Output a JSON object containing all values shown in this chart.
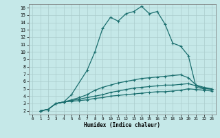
{
  "xlabel": "Humidex (Indice chaleur)",
  "bg_color": "#c5e8e8",
  "grid_color": "#aacccc",
  "line_color": "#1a6e6e",
  "xlim": [
    -0.5,
    23.5
  ],
  "ylim": [
    1.5,
    16.5
  ],
  "xticks": [
    0,
    1,
    2,
    3,
    4,
    5,
    6,
    7,
    8,
    9,
    10,
    11,
    12,
    13,
    14,
    15,
    16,
    17,
    18,
    19,
    20,
    21,
    22,
    23
  ],
  "yticks": [
    2,
    3,
    4,
    5,
    6,
    7,
    8,
    9,
    10,
    11,
    12,
    13,
    14,
    15,
    16
  ],
  "series1": [
    [
      1,
      2.0
    ],
    [
      2,
      2.2
    ],
    [
      3,
      3.0
    ],
    [
      4,
      3.2
    ],
    [
      5,
      4.2
    ],
    [
      7,
      7.5
    ],
    [
      8,
      10.0
    ],
    [
      9,
      13.2
    ],
    [
      10,
      14.7
    ],
    [
      11,
      14.2
    ],
    [
      12,
      15.2
    ],
    [
      13,
      15.5
    ],
    [
      14,
      16.2
    ],
    [
      15,
      15.2
    ],
    [
      16,
      15.5
    ],
    [
      17,
      13.8
    ],
    [
      18,
      11.2
    ],
    [
      19,
      10.8
    ],
    [
      20,
      9.5
    ],
    [
      21,
      5.2
    ],
    [
      22,
      5.0
    ],
    [
      23,
      5.0
    ]
  ],
  "series2": [
    [
      1,
      2.0
    ],
    [
      2,
      2.2
    ],
    [
      3,
      3.0
    ],
    [
      4,
      3.2
    ],
    [
      5,
      3.5
    ],
    [
      6,
      3.8
    ],
    [
      7,
      4.2
    ],
    [
      8,
      4.8
    ],
    [
      9,
      5.2
    ],
    [
      10,
      5.5
    ],
    [
      11,
      5.8
    ],
    [
      12,
      6.0
    ],
    [
      13,
      6.2
    ],
    [
      14,
      6.4
    ],
    [
      15,
      6.5
    ],
    [
      16,
      6.6
    ],
    [
      17,
      6.7
    ],
    [
      18,
      6.8
    ],
    [
      19,
      6.9
    ],
    [
      20,
      6.5
    ],
    [
      21,
      5.5
    ],
    [
      22,
      5.2
    ],
    [
      23,
      5.0
    ]
  ],
  "series3": [
    [
      1,
      2.0
    ],
    [
      2,
      2.2
    ],
    [
      3,
      3.0
    ],
    [
      4,
      3.2
    ],
    [
      5,
      3.4
    ],
    [
      6,
      3.6
    ],
    [
      7,
      3.8
    ],
    [
      8,
      4.0
    ],
    [
      9,
      4.2
    ],
    [
      10,
      4.5
    ],
    [
      11,
      4.7
    ],
    [
      12,
      4.9
    ],
    [
      13,
      5.1
    ],
    [
      14,
      5.2
    ],
    [
      15,
      5.3
    ],
    [
      16,
      5.4
    ],
    [
      17,
      5.5
    ],
    [
      18,
      5.5
    ],
    [
      19,
      5.6
    ],
    [
      20,
      5.7
    ],
    [
      21,
      5.4
    ],
    [
      22,
      5.1
    ],
    [
      23,
      4.9
    ]
  ],
  "series4": [
    [
      1,
      2.0
    ],
    [
      2,
      2.2
    ],
    [
      3,
      3.0
    ],
    [
      4,
      3.2
    ],
    [
      5,
      3.3
    ],
    [
      6,
      3.4
    ],
    [
      7,
      3.5
    ],
    [
      8,
      3.7
    ],
    [
      9,
      3.8
    ],
    [
      10,
      4.0
    ],
    [
      11,
      4.1
    ],
    [
      12,
      4.2
    ],
    [
      13,
      4.3
    ],
    [
      14,
      4.4
    ],
    [
      15,
      4.5
    ],
    [
      16,
      4.6
    ],
    [
      17,
      4.6
    ],
    [
      18,
      4.7
    ],
    [
      19,
      4.8
    ],
    [
      20,
      5.0
    ],
    [
      21,
      4.9
    ],
    [
      22,
      4.8
    ],
    [
      23,
      4.7
    ]
  ]
}
